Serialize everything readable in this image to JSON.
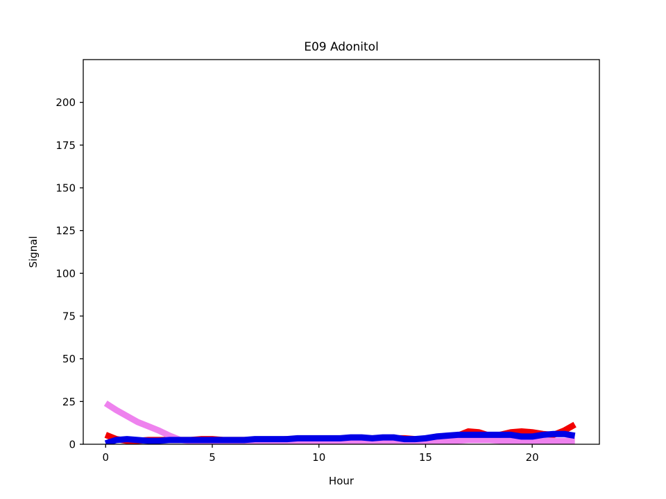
{
  "chart_data": {
    "type": "line",
    "title": "E09 Adonitol",
    "xlabel": "Hour",
    "ylabel": "Signal",
    "xlim": [
      -1.05,
      23.15
    ],
    "ylim": [
      0,
      225
    ],
    "xticks": [
      0,
      5,
      10,
      15,
      20
    ],
    "yticks": [
      0,
      25,
      50,
      75,
      100,
      125,
      150,
      175,
      200
    ],
    "grid": false,
    "legend": null,
    "x": [
      0,
      0.5,
      1,
      1.5,
      2,
      2.5,
      3,
      3.5,
      4,
      4.5,
      5,
      5.5,
      6,
      6.5,
      7,
      7.5,
      8,
      8.5,
      9,
      9.5,
      10,
      10.5,
      11,
      11.5,
      12,
      12.5,
      13,
      13.5,
      14,
      14.5,
      15,
      15.5,
      16,
      16.5,
      17,
      17.5,
      18,
      18.5,
      19,
      19.5,
      20,
      20.5,
      21,
      21.5,
      22
    ],
    "series": [
      {
        "color": "#f20000",
        "values": [
          5.5,
          3,
          2,
          2,
          2.5,
          2.5,
          2.5,
          2.5,
          2.5,
          3,
          3,
          2.5,
          2.5,
          2.5,
          2.5,
          2.5,
          2.5,
          3,
          3,
          3,
          3,
          3,
          3,
          3,
          3,
          3,
          3,
          3.5,
          3.5,
          3,
          3,
          3,
          3.5,
          5,
          7.5,
          7,
          5,
          5.5,
          7,
          7.5,
          7,
          6,
          5.5,
          8,
          11.5
        ]
      },
      {
        "color": "#ee82ee",
        "values": [
          24,
          20,
          16.5,
          13,
          10.5,
          8,
          5,
          2.5,
          1.8,
          1.5,
          1.5,
          1.5,
          1.5,
          1.5,
          1.5,
          1.5,
          1.5,
          1.5,
          1.5,
          1.5,
          1.5,
          1.5,
          1.5,
          1.5,
          1.5,
          1.5,
          1.5,
          1.5,
          1.5,
          1.5,
          1.5,
          1.5,
          1.5,
          2,
          2.5,
          2.5,
          2.5,
          2,
          2,
          2,
          2,
          2,
          2,
          2,
          2
        ]
      },
      {
        "color": "#0000e6",
        "values": [
          0.5,
          2.5,
          3,
          2.5,
          2,
          2,
          2.5,
          2.5,
          2.5,
          2.5,
          2.5,
          2.5,
          2.5,
          2.5,
          3,
          3,
          3,
          3,
          3.5,
          3.5,
          3.5,
          3.5,
          3.5,
          4,
          4,
          3.5,
          4,
          4,
          3,
          3,
          3.5,
          4.5,
          5,
          5.5,
          5.5,
          5.5,
          5.5,
          5.5,
          5.5,
          4.5,
          4.5,
          5.5,
          6,
          6,
          5
        ]
      }
    ]
  }
}
